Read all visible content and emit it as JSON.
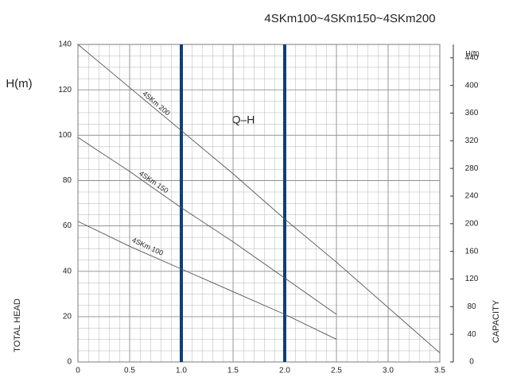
{
  "chart_data": {
    "type": "line",
    "title": "4SKm100~4SKm150~4SKm200",
    "y_label": "H(m)",
    "y2_label": "H(ft)",
    "curve_label": "Q–H",
    "y_axis_title": "TOTAL HEAD",
    "y2_axis_title": "CAPACITY",
    "series": [
      {
        "name": "4SKm 200",
        "color": "#555555",
        "x": [
          0,
          0.5,
          1.0,
          1.5,
          2.0,
          2.5,
          3.0,
          3.5
        ],
        "values": [
          140,
          121,
          102,
          83,
          63,
          44,
          24,
          4
        ]
      },
      {
        "name": "4SKm 150",
        "color": "#555555",
        "x": [
          0,
          0.5,
          1.0,
          1.5,
          2.0,
          2.5
        ],
        "values": [
          99,
          84,
          68,
          53,
          37,
          21
        ]
      },
      {
        "name": "4SKm 100",
        "color": "#555555",
        "x": [
          0,
          0.5,
          1.0,
          1.5,
          2.0,
          2.5
        ],
        "values": [
          62,
          51,
          41,
          31,
          21,
          10
        ]
      }
    ],
    "highlight_x": [
      1,
      2
    ],
    "highlight_color": "#0d3f7a",
    "xlim": [
      0,
      3.5
    ],
    "xticks": [
      0,
      0.5,
      {
        "value": 1,
        "label": "1.0"
      },
      1.5,
      {
        "value": 2,
        "label": "2.0"
      },
      2.5,
      {
        "value": 3,
        "label": "3.0"
      },
      3.5
    ],
    "ylim": [
      0,
      140
    ],
    "yticks": [
      0,
      20,
      40,
      60,
      80,
      100,
      120,
      140
    ],
    "y2lim": [
      0,
      459.3
    ],
    "y2ticks": [
      0,
      40,
      80,
      120,
      160,
      200,
      240,
      280,
      320,
      360,
      400,
      440
    ],
    "grid": true
  }
}
